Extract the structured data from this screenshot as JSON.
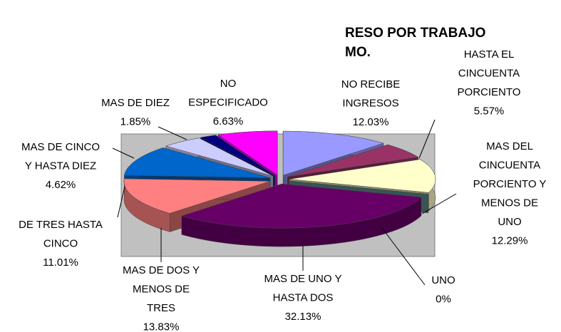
{
  "chart_data": {
    "type": "pie",
    "title": [
      "RESO POR TRABAJO",
      "MO."
    ],
    "categories": [
      "NO RECIBE INGRESOS",
      "HASTA EL CINCUENTA PORCIENTO",
      "MAS DEL CINCUENTA PORCIENTO Y MENOS DE UNO",
      "UNO",
      "MAS DE UNO Y HASTA DOS",
      "MAS DE DOS Y MENOS DE TRES",
      "DE TRES HASTA CINCO",
      "MAS DE CINCO Y HASTA DIEZ",
      "MAS DE DIEZ",
      "NO ESPECIFICADO"
    ],
    "values": [
      12.03,
      5.57,
      12.29,
      0,
      32.13,
      13.83,
      11.01,
      4.62,
      1.85,
      6.63
    ],
    "value_labels": [
      "12.03%",
      "5.57%",
      "12.29%",
      "0%",
      "32.13%",
      "13.83%",
      "11.01%",
      "4.62%",
      "1.85%",
      "6.63%"
    ],
    "colors": [
      "#9999ff",
      "#993366",
      "#ffffcc",
      "#669999",
      "#660066",
      "#ff8080",
      "#0066cc",
      "#ccccff",
      "#000080",
      "#ff00ff"
    ]
  }
}
